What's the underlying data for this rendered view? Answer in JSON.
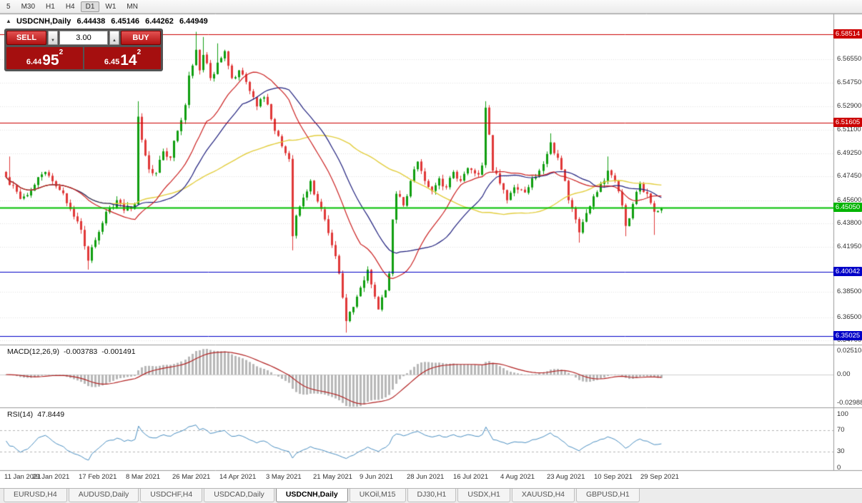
{
  "icons": {
    "collapse": "▲",
    "spinner_up": "▲",
    "spinner_down": "▼"
  },
  "toolbar": {
    "periods": [
      {
        "label": "5",
        "active": false
      },
      {
        "label": "M30",
        "active": false
      },
      {
        "label": "H1",
        "active": false
      },
      {
        "label": "H4",
        "active": false
      },
      {
        "label": "D1",
        "active": true
      },
      {
        "label": "W1",
        "active": false
      },
      {
        "label": "MN",
        "active": false
      }
    ]
  },
  "chart": {
    "symbol_title": "USDCNH,Daily",
    "ohlc": {
      "open": "6.44438",
      "high": "6.45146",
      "low": "6.44262",
      "close": "6.44949"
    }
  },
  "one_click": {
    "sell_label": "SELL",
    "buy_label": "BUY",
    "volume": "3.00",
    "sell_price": {
      "prefix": "6.44",
      "big": "95",
      "sup": "2"
    },
    "buy_price": {
      "prefix": "6.45",
      "big": "14",
      "sup": "2"
    }
  },
  "macd": {
    "name": "MACD(12,26,9)",
    "value_main": "-0.003783",
    "value_signal": "-0.001491",
    "axis": [
      {
        "label": "0.025108",
        "value": 0.025108
      },
      {
        "label": "0.00",
        "value": 0
      },
      {
        "label": "-0.02988",
        "value": -0.02988
      }
    ]
  },
  "rsi": {
    "name": "RSI(14)",
    "value_text": "47.8449",
    "axis": [
      {
        "label": "100",
        "value": 100
      },
      {
        "label": "70",
        "value": 70
      },
      {
        "label": "30",
        "value": 30
      },
      {
        "label": "0",
        "value": 0
      }
    ],
    "dashed_levels": [
      70,
      30
    ]
  },
  "price_axis": {
    "ticks": [
      "6.56550",
      "6.54750",
      "6.52900",
      "6.51100",
      "6.49250",
      "6.47450",
      "6.45600",
      "6.43800",
      "6.41950",
      "6.38500",
      "6.36500",
      "6.34700"
    ],
    "tags": [
      {
        "label": "6.58514",
        "price": 6.58514,
        "color": "#cc0000"
      },
      {
        "label": "6.51605",
        "price": 6.51605,
        "color": "#cc0000"
      },
      {
        "label": "6.45050",
        "price": 6.4505,
        "color": "#00b400"
      },
      {
        "label": "6.40042",
        "price": 6.40042,
        "color": "#0000c8"
      },
      {
        "label": "6.35025",
        "price": 6.35025,
        "color": "#0000c8"
      }
    ]
  },
  "dates": [
    "11 Jan 2021",
    "29 Jan 2021",
    "17 Feb 2021",
    "8 Mar 2021",
    "26 Mar 2021",
    "14 Apr 2021",
    "3 May 2021",
    "21 May 2021",
    "9 Jun 2021",
    "28 Jun 2021",
    "16 Jul 2021",
    "4 Aug 2021",
    "23 Aug 2021",
    "10 Sep 2021",
    "29 Sep 2021"
  ],
  "tabs": [
    {
      "label": "EURUSD,H4",
      "active": false
    },
    {
      "label": "AUDUSD,Daily",
      "active": false
    },
    {
      "label": "USDCHF,H4",
      "active": false
    },
    {
      "label": "USDCAD,Daily",
      "active": false
    },
    {
      "label": "USDCNH,Daily",
      "active": true
    },
    {
      "label": "UKOil,M15",
      "active": false
    },
    {
      "label": "DJ30,H1",
      "active": false
    },
    {
      "label": "USDX,H1",
      "active": false
    },
    {
      "label": "XAUUSD,H4",
      "active": false
    },
    {
      "label": "GBPUSD,H1",
      "active": false
    }
  ],
  "colors": {
    "bull": "#0f9e0f",
    "bear": "#e03838",
    "ma_fast_red": "#cc2222",
    "ma_mid_navy": "#20207e",
    "ma_slow_yellow": "#e3ce3e",
    "macd_hist": "#b8b8b8",
    "macd_signal": "#b22222",
    "rsi_line": "#4a8fc2",
    "grid": "#e2e2e2",
    "separator": "#9a9a9a"
  },
  "chart_data": {
    "type": "candlestick",
    "symbol": "USDCNH",
    "timeframe": "Daily",
    "x_range": [
      "11 Jan 2021",
      "30 Sep 2021"
    ],
    "y_visible_range": [
      6.344,
      6.6
    ],
    "candle_count": 184,
    "last_close": 6.44949,
    "close_waypoints": [
      [
        0,
        6.474
      ],
      [
        4,
        6.457
      ],
      [
        8,
        6.468
      ],
      [
        11,
        6.478
      ],
      [
        15,
        6.464
      ],
      [
        18,
        6.449
      ],
      [
        21,
        6.433
      ],
      [
        23,
        6.409
      ],
      [
        25,
        6.425
      ],
      [
        28,
        6.447
      ],
      [
        31,
        6.456
      ],
      [
        33,
        6.448
      ],
      [
        36,
        6.453
      ],
      [
        37,
        6.521
      ],
      [
        38,
        6.503
      ],
      [
        40,
        6.48
      ],
      [
        42,
        6.477
      ],
      [
        44,
        6.494
      ],
      [
        46,
        6.489
      ],
      [
        48,
        6.51
      ],
      [
        50,
        6.53
      ],
      [
        51,
        6.553
      ],
      [
        53,
        6.573
      ],
      [
        54,
        6.557
      ],
      [
        55,
        6.569
      ],
      [
        57,
        6.551
      ],
      [
        59,
        6.563
      ],
      [
        61,
        6.572
      ],
      [
        63,
        6.551
      ],
      [
        65,
        6.557
      ],
      [
        68,
        6.541
      ],
      [
        70,
        6.529
      ],
      [
        72,
        6.536
      ],
      [
        74,
        6.519
      ],
      [
        76,
        6.506
      ],
      [
        77,
        6.498
      ],
      [
        79,
        6.488
      ],
      [
        80,
        6.428
      ],
      [
        81,
        6.444
      ],
      [
        83,
        6.458
      ],
      [
        85,
        6.471
      ],
      [
        87,
        6.455
      ],
      [
        89,
        6.441
      ],
      [
        91,
        6.421
      ],
      [
        93,
        6.399
      ],
      [
        95,
        6.362
      ],
      [
        97,
        6.373
      ],
      [
        99,
        6.388
      ],
      [
        101,
        6.402
      ],
      [
        103,
        6.381
      ],
      [
        104,
        6.371
      ],
      [
        106,
        6.386
      ],
      [
        107,
        6.399
      ],
      [
        108,
        6.441
      ],
      [
        109,
        6.461
      ],
      [
        111,
        6.452
      ],
      [
        113,
        6.471
      ],
      [
        115,
        6.486
      ],
      [
        117,
        6.471
      ],
      [
        119,
        6.463
      ],
      [
        121,
        6.473
      ],
      [
        123,
        6.466
      ],
      [
        125,
        6.478
      ],
      [
        127,
        6.471
      ],
      [
        129,
        6.481
      ],
      [
        132,
        6.476
      ],
      [
        133,
        6.483
      ],
      [
        134,
        6.528
      ],
      [
        135,
        6.507
      ],
      [
        136,
        6.479
      ],
      [
        138,
        6.469
      ],
      [
        140,
        6.456
      ],
      [
        142,
        6.466
      ],
      [
        145,
        6.462
      ],
      [
        147,
        6.473
      ],
      [
        149,
        6.479
      ],
      [
        151,
        6.492
      ],
      [
        152,
        6.501
      ],
      [
        154,
        6.489
      ],
      [
        156,
        6.471
      ],
      [
        157,
        6.456
      ],
      [
        159,
        6.441
      ],
      [
        160,
        6.431
      ],
      [
        162,
        6.446
      ],
      [
        164,
        6.459
      ],
      [
        166,
        6.469
      ],
      [
        168,
        6.479
      ],
      [
        170,
        6.471
      ],
      [
        171,
        6.463
      ],
      [
        172,
        6.452
      ],
      [
        173,
        6.436
      ],
      [
        175,
        6.453
      ],
      [
        177,
        6.469
      ],
      [
        179,
        6.461
      ],
      [
        181,
        6.447
      ],
      [
        183,
        6.4495
      ]
    ],
    "wick_extremes": [
      {
        "i": 1,
        "high": 6.49
      },
      {
        "i": 23,
        "low": 6.402
      },
      {
        "i": 37,
        "high": 6.533
      },
      {
        "i": 53,
        "high": 6.587
      },
      {
        "i": 55,
        "high": 6.583
      },
      {
        "i": 59,
        "high": 6.578
      },
      {
        "i": 80,
        "low": 6.417
      },
      {
        "i": 95,
        "low": 6.353
      },
      {
        "i": 134,
        "high": 6.533
      },
      {
        "i": 152,
        "high": 6.508
      },
      {
        "i": 160,
        "low": 6.423
      },
      {
        "i": 168,
        "high": 6.49
      },
      {
        "i": 173,
        "low": 6.428
      },
      {
        "i": 181,
        "low": 6.429
      }
    ],
    "overlays": [
      {
        "name": "SMA-20",
        "color": "#cc2222"
      },
      {
        "name": "SMA-30",
        "color": "#20207e"
      },
      {
        "name": "SMA-60",
        "color": "#e3ce3e"
      }
    ],
    "h_lines": [
      {
        "price": 6.58514,
        "color": "#cc0000",
        "width": 1
      },
      {
        "price": 6.51605,
        "color": "#cc0000",
        "width": 1
      },
      {
        "price": 6.4505,
        "color": "#00bf00",
        "width": 2
      },
      {
        "price": 6.40042,
        "color": "#0000c8",
        "width": 1
      },
      {
        "price": 6.35025,
        "color": "#0000c8",
        "width": 1
      }
    ],
    "indicators": [
      {
        "type": "MACD",
        "fast": 12,
        "slow": 26,
        "signal": 9,
        "current": [
          -0.003783,
          -0.001491
        ],
        "axis_range": [
          0.025108,
          -0.02988
        ]
      },
      {
        "type": "RSI",
        "period": 14,
        "current": 47.8449,
        "axis_range": [
          100,
          0
        ],
        "levels": [
          70,
          30
        ]
      }
    ]
  }
}
